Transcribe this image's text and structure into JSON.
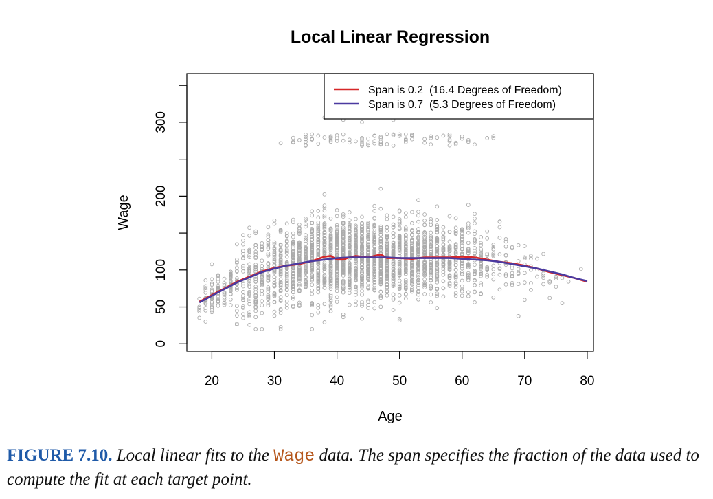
{
  "chart_data": {
    "type": "scatter",
    "title": "Local Linear Regression",
    "xlabel": "Age",
    "ylabel": "Wage",
    "xlim": [
      16,
      81
    ],
    "ylim": [
      -10,
      366
    ],
    "xticks": [
      20,
      30,
      40,
      50,
      60,
      70,
      80
    ],
    "yticks": [
      0,
      50,
      100,
      150,
      200,
      250,
      300,
      350
    ],
    "ytick_labels": [
      "0",
      "50",
      "100",
      "",
      "200",
      "",
      "300",
      ""
    ],
    "legend_position": "top-right",
    "scatter": {
      "color": "#aaaaaa",
      "marker": "open-circle",
      "x_range": [
        18,
        80
      ],
      "bulk_wage_range": [
        20,
        210
      ],
      "high_wage_cluster": {
        "wage_range": [
          260,
          320
        ],
        "age_range": [
          25,
          67
        ]
      },
      "approx_points": 3000
    },
    "series": [
      {
        "name": "Span is 0.2  (16.4 Degrees of Freedom)",
        "color": "#d62728",
        "x": [
          18,
          20,
          22,
          24,
          26,
          28,
          30,
          32,
          34,
          36,
          37,
          38,
          39,
          40,
          41,
          42,
          43,
          44,
          45,
          46,
          47,
          48,
          50,
          52,
          54,
          56,
          58,
          60,
          62,
          64,
          66,
          68,
          70,
          72,
          74,
          76,
          78,
          80
        ],
        "y": [
          57,
          66,
          75,
          84,
          91,
          98,
          103,
          106,
          108,
          112,
          115,
          118,
          119,
          114,
          114,
          117,
          119,
          118,
          117,
          119,
          121,
          116,
          116,
          115,
          117,
          117,
          117,
          118,
          117,
          114,
          111,
          109,
          106,
          102,
          97,
          93,
          89,
          84
        ]
      },
      {
        "name": "Span is 0.7  (5.3 Degrees of Freedom)",
        "color": "#4b3aa0",
        "x": [
          18,
          20,
          22,
          24,
          26,
          28,
          30,
          32,
          34,
          36,
          38,
          40,
          42,
          44,
          46,
          48,
          50,
          52,
          54,
          56,
          58,
          60,
          62,
          64,
          66,
          68,
          70,
          72,
          74,
          76,
          78,
          80
        ],
        "y": [
          56,
          65,
          74,
          83,
          90,
          97,
          102,
          106,
          109,
          112,
          114,
          116,
          117,
          117,
          117,
          117,
          116,
          116,
          116,
          116,
          116,
          115,
          114,
          113,
          111,
          108,
          105,
          102,
          98,
          94,
          89,
          85
        ]
      }
    ]
  },
  "caption": {
    "figure_label": "FIGURE 7.10.",
    "text_before": " Local linear fits to the ",
    "code_word": "Wage",
    "text_after": " data. The span specifies the fraction of the data used to compute the fit at each target point."
  }
}
